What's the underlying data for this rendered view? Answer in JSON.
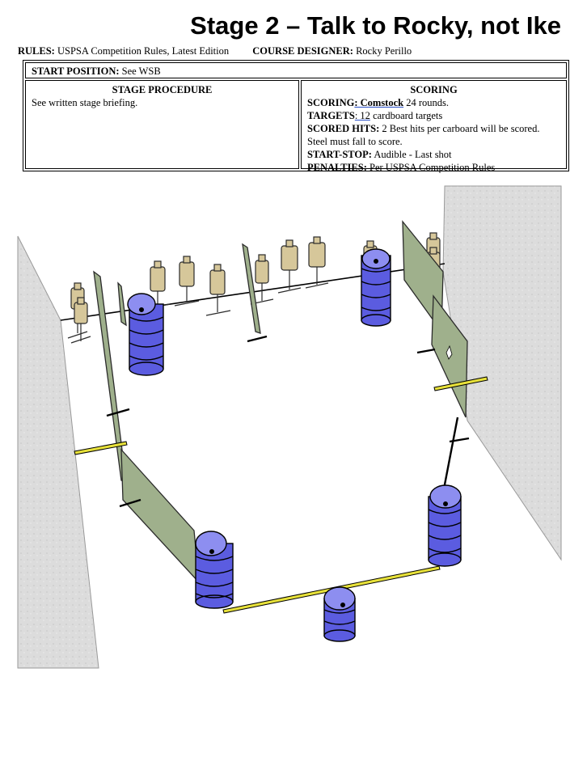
{
  "title": "Stage 2 – Talk to Rocky, not Ike",
  "rules": {
    "label": "RULES:",
    "value": "USPSA Competition Rules, Latest Edition"
  },
  "designer": {
    "label": "COURSE DESIGNER:",
    "value": "Rocky Perillo"
  },
  "start_position": {
    "label": "START POSITION:",
    "value": "See WSB"
  },
  "procedure": {
    "heading": "STAGE PROCEDURE",
    "text": "See written stage briefing."
  },
  "scoring": {
    "heading": "SCORING",
    "scoring_label": "SCORING",
    "scoring_underlined": ": Comstock",
    "scoring_value": " 24 rounds.",
    "targets_label": "TARGETS",
    "targets_underlined": ": 12",
    "targets_value": " cardboard targets",
    "hits_label": "SCORED HITS:",
    "hits_value": "2 Best hits per carboard will be scored. Steel must fall to score.",
    "startstop_label": "START-STOP:",
    "startstop_value": "Audible - Last shot",
    "penalties_label": "PENALTIES:",
    "penalties_value": "Per USPSA Competition Rules"
  },
  "colors": {
    "barrel": "#5b5ce0",
    "barrel_top": "#8d8ef0",
    "wall": "#9fb08c",
    "fault_line": "#e8e23a",
    "target": "#d6c79a",
    "backstop": "#dcdcdc"
  }
}
